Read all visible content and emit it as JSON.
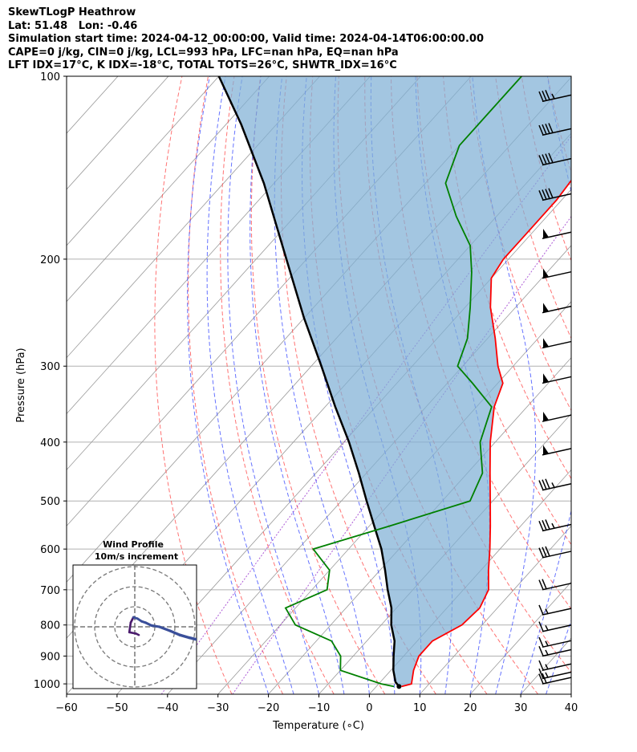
{
  "header": {
    "line1": "SkewTLogP Heathrow",
    "line2": "Lat: 51.48   Lon: -0.46",
    "line3": "Simulation start time: 2024-04-12_00:00:00, Valid time: 2024-04-14T06:00:00.00",
    "line4": "CAPE=0 j/kg, CIN=0 j/kg, LCL=993 hPa, LFC=nan hPa, EQ=nan hPa",
    "line5": "LFT IDX=17°C, K IDX=-18°C, TOTAL TOTS=26°C, SHWTR_IDX=16°C"
  },
  "colors": {
    "temperature": "#ff0000",
    "dewpoint": "#008000",
    "parcel": "#000000",
    "shading": "#7fb0d5",
    "dry_adiabat": "#ff4444",
    "moist_adiabat": "#3344ff",
    "mixing_ratio": "#9933cc",
    "isotherm": "#999999",
    "wind_profile": "#3a4f9a"
  },
  "chart_data": {
    "type": "skewt",
    "xlabel": "Temperature (∘C)",
    "ylabel": "Pressure (hPa)",
    "xlim": [
      -60,
      40
    ],
    "ylim": [
      1040,
      100
    ],
    "x_ticks": [
      "−60",
      "−50",
      "−40",
      "−30",
      "−20",
      "−10",
      "0",
      "10",
      "20",
      "30",
      "40"
    ],
    "y_ticks": [
      "100",
      "200",
      "300",
      "400",
      "500",
      "600",
      "700",
      "800",
      "900",
      "1000"
    ],
    "grid": true,
    "temperature_profile": [
      {
        "p": 1010,
        "t": 5.0
      },
      {
        "p": 1000,
        "t": 6.5
      },
      {
        "p": 950,
        "t": 4.5
      },
      {
        "p": 900,
        "t": 3.0
      },
      {
        "p": 850,
        "t": 3.0
      },
      {
        "p": 800,
        "t": 6.0
      },
      {
        "p": 750,
        "t": 6.5
      },
      {
        "p": 700,
        "t": 5.0
      },
      {
        "p": 650,
        "t": 1.5
      },
      {
        "p": 600,
        "t": -2.0
      },
      {
        "p": 550,
        "t": -6.0
      },
      {
        "p": 500,
        "t": -10.5
      },
      {
        "p": 450,
        "t": -15.5
      },
      {
        "p": 400,
        "t": -21.0
      },
      {
        "p": 350,
        "t": -26.5
      },
      {
        "p": 320,
        "t": -29.0
      },
      {
        "p": 300,
        "t": -33.0
      },
      {
        "p": 270,
        "t": -38.5
      },
      {
        "p": 240,
        "t": -45.0
      },
      {
        "p": 215,
        "t": -50.0
      },
      {
        "p": 200,
        "t": -51.0
      },
      {
        "p": 180,
        "t": -51.0
      },
      {
        "p": 160,
        "t": -51.0
      },
      {
        "p": 140,
        "t": -52.0
      },
      {
        "p": 125,
        "t": -55.0
      },
      {
        "p": 100,
        "t": -60.0
      }
    ],
    "dewpoint_profile": [
      {
        "p": 1010,
        "t": 3.5
      },
      {
        "p": 1000,
        "t": 0.5
      },
      {
        "p": 950,
        "t": -10.0
      },
      {
        "p": 900,
        "t": -12.5
      },
      {
        "p": 850,
        "t": -17.0
      },
      {
        "p": 800,
        "t": -27.0
      },
      {
        "p": 750,
        "t": -32.0
      },
      {
        "p": 700,
        "t": -27.0
      },
      {
        "p": 650,
        "t": -30.0
      },
      {
        "p": 600,
        "t": -37.0
      },
      {
        "p": 550,
        "t": -26.0
      },
      {
        "p": 500,
        "t": -14.5
      },
      {
        "p": 450,
        "t": -17.0
      },
      {
        "p": 400,
        "t": -23.0
      },
      {
        "p": 350,
        "t": -27.0
      },
      {
        "p": 320,
        "t": -35.0
      },
      {
        "p": 300,
        "t": -41.0
      },
      {
        "p": 270,
        "t": -44.0
      },
      {
        "p": 240,
        "t": -49.0
      },
      {
        "p": 210,
        "t": -55.0
      },
      {
        "p": 190,
        "t": -60.0
      },
      {
        "p": 170,
        "t": -68.0
      },
      {
        "p": 150,
        "t": -76.0
      },
      {
        "p": 130,
        "t": -80.0
      },
      {
        "p": 115,
        "t": -80.0
      },
      {
        "p": 100,
        "t": -80.0
      }
    ],
    "parcel_profile": [
      {
        "p": 1010,
        "t": 4.5
      },
      {
        "p": 993,
        "t": 3.0
      },
      {
        "p": 950,
        "t": 0.5
      },
      {
        "p": 900,
        "t": -2.0
      },
      {
        "p": 850,
        "t": -4.5
      },
      {
        "p": 800,
        "t": -8.0
      },
      {
        "p": 750,
        "t": -11.0
      },
      {
        "p": 700,
        "t": -15.0
      },
      {
        "p": 650,
        "t": -19.0
      },
      {
        "p": 600,
        "t": -23.5
      },
      {
        "p": 550,
        "t": -29.0
      },
      {
        "p": 500,
        "t": -35.0
      },
      {
        "p": 450,
        "t": -41.5
      },
      {
        "p": 400,
        "t": -49.0
      },
      {
        "p": 350,
        "t": -58.0
      },
      {
        "p": 300,
        "t": -68.0
      },
      {
        "p": 250,
        "t": -80.0
      },
      {
        "p": 200,
        "t": -94.0
      },
      {
        "p": 150,
        "t": -112.0
      },
      {
        "p": 120,
        "t": -127.0
      },
      {
        "p": 100,
        "t": -140.0
      }
    ],
    "wind_barbs": [
      {
        "p": 1000,
        "speed_kt": 20
      },
      {
        "p": 980,
        "speed_kt": 15
      },
      {
        "p": 950,
        "speed_kt": 15
      },
      {
        "p": 900,
        "speed_kt": 15
      },
      {
        "p": 870,
        "speed_kt": 15
      },
      {
        "p": 820,
        "speed_kt": 15
      },
      {
        "p": 770,
        "speed_kt": 15
      },
      {
        "p": 700,
        "speed_kt": 20
      },
      {
        "p": 620,
        "speed_kt": 30
      },
      {
        "p": 560,
        "speed_kt": 35
      },
      {
        "p": 480,
        "speed_kt": 35
      },
      {
        "p": 420,
        "speed_kt": 50
      },
      {
        "p": 370,
        "speed_kt": 50
      },
      {
        "p": 320,
        "speed_kt": 50
      },
      {
        "p": 280,
        "speed_kt": 50
      },
      {
        "p": 245,
        "speed_kt": 50
      },
      {
        "p": 215,
        "speed_kt": 50
      },
      {
        "p": 185,
        "speed_kt": 50
      },
      {
        "p": 160,
        "speed_kt": 40
      },
      {
        "p": 140,
        "speed_kt": 40
      },
      {
        "p": 125,
        "speed_kt": 40
      },
      {
        "p": 110,
        "speed_kt": 35
      }
    ],
    "inset": {
      "title": "Wind Profile",
      "subtitle": "10m/s increment",
      "hodograph_u": [
        3,
        1,
        -4,
        -3,
        -1,
        2,
        5,
        8,
        12,
        18,
        26,
        33,
        40,
        48
      ],
      "hodograph_v": [
        6,
        5,
        4,
        -3,
        -7,
        -6,
        -4,
        -3,
        -1,
        0,
        3,
        6,
        8,
        10
      ]
    }
  }
}
